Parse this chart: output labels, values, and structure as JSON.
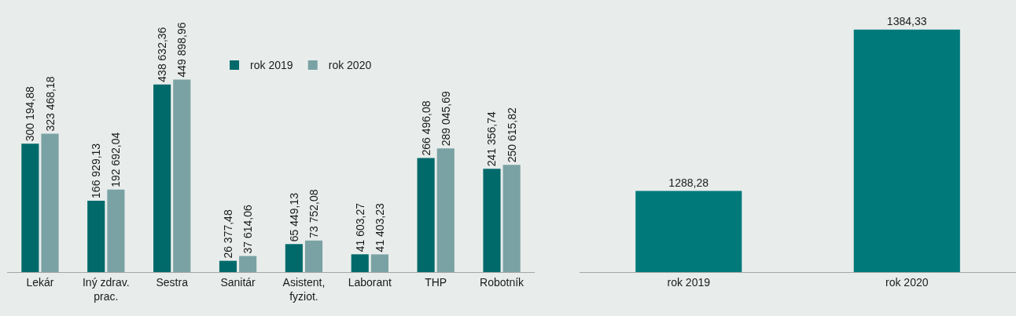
{
  "chart_data": [
    {
      "type": "bar",
      "categories": [
        "Lekár",
        "Iný zdrav. prac.",
        "Sestra",
        "Sanitár",
        "Asistent, fyziot.",
        "Laborant",
        "THP",
        "Robotník"
      ],
      "series": [
        {
          "name": "rok 2019",
          "color": "#006a6b",
          "values": [
            300194.88,
            166929.13,
            438632.36,
            26377.48,
            65449.13,
            41603.27,
            266496.08,
            241356.74
          ],
          "value_labels": [
            "300 194,88",
            "166 929,13",
            "438 632,36",
            "26 377,48",
            "65 449,13",
            "41 603,27",
            "266 496,08",
            "241 356,74"
          ]
        },
        {
          "name": "rok 2020",
          "color": "#7aa2a4",
          "values": [
            323468.18,
            192692.04,
            449898.96,
            37614.06,
            73752.08,
            41403.23,
            289045.69,
            250615.82
          ],
          "value_labels": [
            "323 468,18",
            "192 692,04",
            "449 898,96",
            "37 614,06",
            "73 752,08",
            "41 403,23",
            "289 045,69",
            "250 615,82"
          ]
        }
      ],
      "ylim": [
        0,
        636000
      ],
      "tick_labels": "x",
      "legend": "top",
      "grid": false
    },
    {
      "type": "bar",
      "categories": [
        "rok 2019",
        "rok 2020"
      ],
      "values": [
        1288.28,
        1384.33
      ],
      "value_labels": [
        "1288,28",
        "1384,33"
      ],
      "color": "#00797b",
      "ylim": [
        1240,
        1402
      ],
      "tick_labels": "x",
      "grid": false
    }
  ]
}
